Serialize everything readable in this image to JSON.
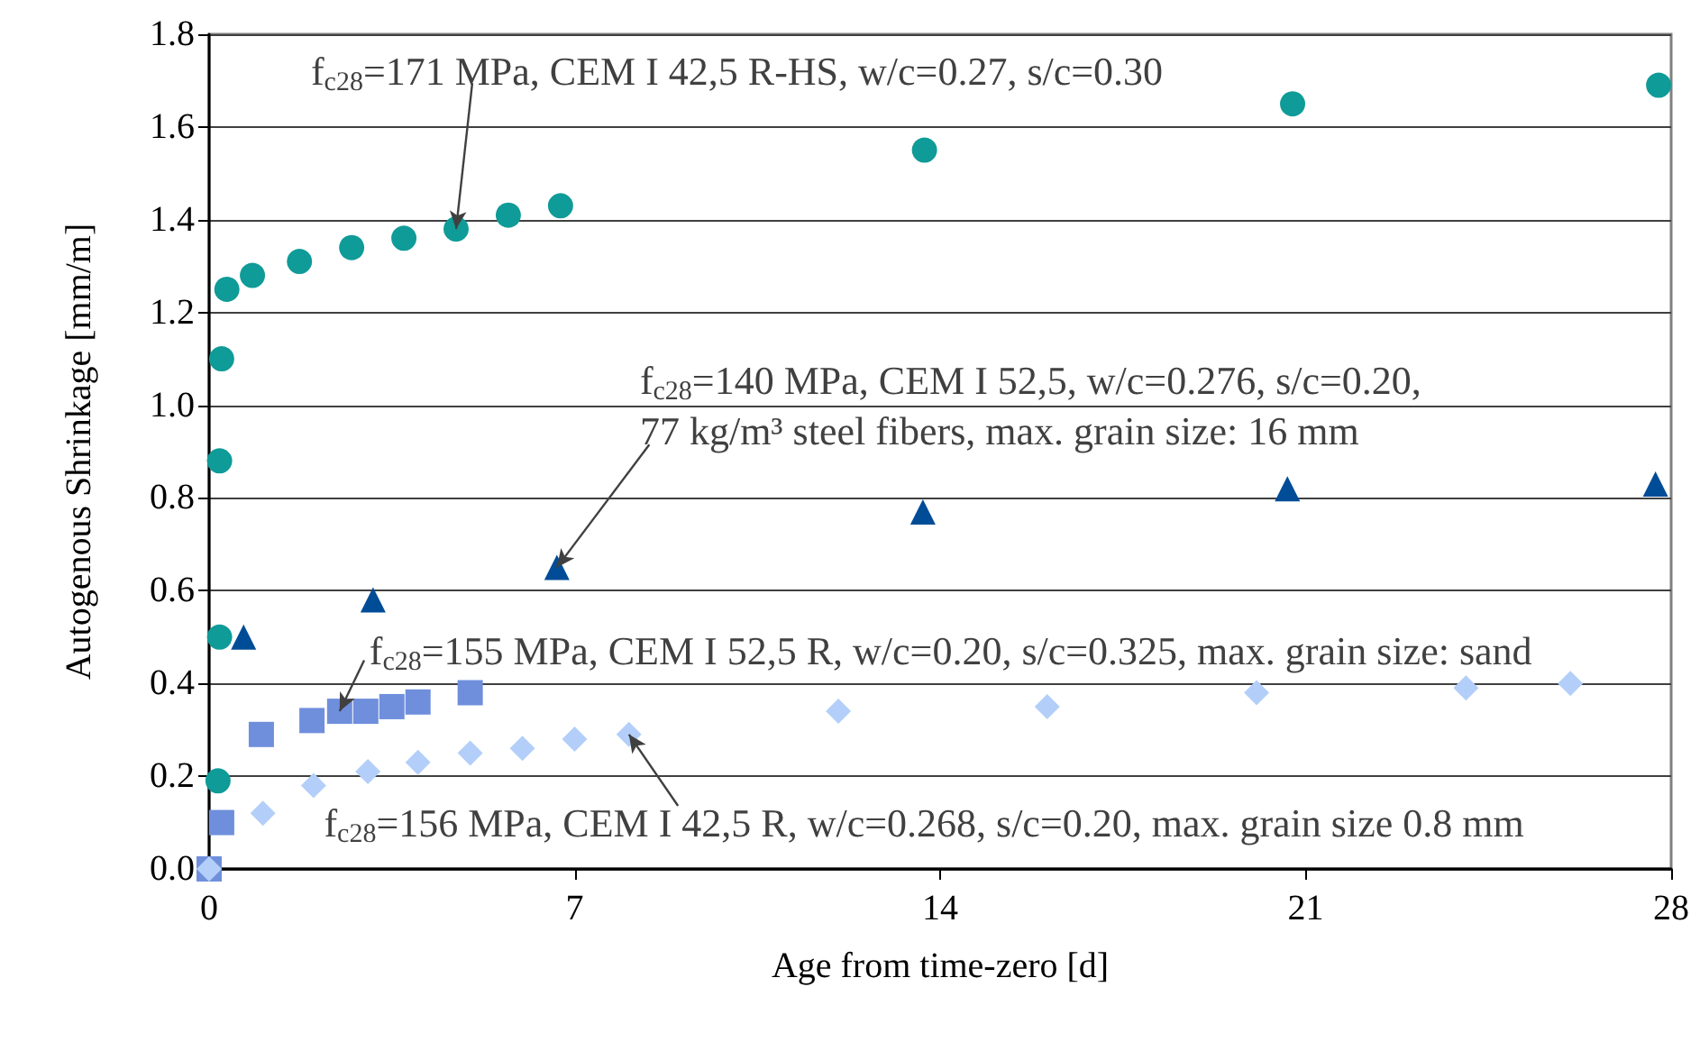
{
  "chart_data": {
    "type": "scatter",
    "xlabel": "Age from time-zero [d]",
    "ylabel": "Autogenous Shrinkage [mm/m]",
    "xlim": [
      0,
      28
    ],
    "xticks": [
      0,
      7,
      14,
      21,
      28
    ],
    "ylim": [
      0,
      1.8
    ],
    "yticks": [
      {
        "value": 0,
        "label": "0.0"
      },
      {
        "value": 0.2,
        "label": "0.2"
      },
      {
        "value": 0.4,
        "label": "0.4"
      },
      {
        "value": 0.6,
        "label": "0.6"
      },
      {
        "value": 0.8,
        "label": "0.8"
      },
      {
        "value": 1.0,
        "label": "1.0"
      },
      {
        "value": 1.2,
        "label": "1.2"
      },
      {
        "value": 1.4,
        "label": "1.4"
      },
      {
        "value": 1.6,
        "label": "1.6"
      },
      {
        "value": 1.8,
        "label": "1.8"
      }
    ],
    "grid": "y",
    "series": [
      {
        "color": "#0f9b98",
        "marker": "circle",
        "x": [
          0.17,
          0.2,
          0.2,
          0.24,
          0.34,
          0.83,
          1.73,
          2.73,
          3.73,
          4.73,
          5.73,
          6.73,
          13.7,
          20.75,
          27.76
        ],
        "values": [
          0.19,
          0.5,
          0.88,
          1.1,
          1.25,
          1.28,
          1.31,
          1.34,
          1.36,
          1.38,
          1.41,
          1.43,
          1.55,
          1.65,
          1.69
        ]
      },
      {
        "color": "#004c97",
        "marker": "triangle",
        "x": [
          0.66,
          3.14,
          6.66,
          13.67,
          20.65,
          27.7
        ],
        "values": [
          0.5,
          0.58,
          0.65,
          0.77,
          0.82,
          0.83
        ]
      },
      {
        "color": "#6f8fdc",
        "marker": "square",
        "x": [
          0,
          0.24,
          1.0,
          1.97,
          2.5,
          3.0,
          3.5,
          4.0,
          5.0
        ],
        "values": [
          0,
          0.1,
          0.29,
          0.32,
          0.34,
          0.34,
          0.35,
          0.36,
          0.38
        ]
      },
      {
        "color": "#b3cff9",
        "marker": "diamond",
        "x": [
          0,
          1.03,
          2.0,
          3.04,
          4.0,
          5.0,
          6.0,
          7.0,
          8.04,
          12.05,
          16.05,
          20.06,
          24.07,
          26.07
        ],
        "values": [
          0,
          0.12,
          0.18,
          0.21,
          0.23,
          0.25,
          0.26,
          0.28,
          0.29,
          0.34,
          0.35,
          0.38,
          0.39,
          0.4
        ]
      }
    ],
    "annotations": [
      {
        "text": "f$_{c28}$=171 MPa, CEM I 42,5 R-HS, w/c=0.27, s/c=0.30",
        "x": 4.73,
        "y": 1.38
      },
      {
        "text": "f$_{c28}$=140 MPa, CEM I 52,5, w/c=0.276, s/c=0.20,\n77 kg/m³ steel fibers, max. grain size: 16 mm",
        "x": 6.66,
        "y": 0.65
      },
      {
        "text": "f$_{c28}$=155 MPa, CEM I 52,5 R, w/c=0.20, s/c=0.325, max. grain size: sand",
        "x": 2.5,
        "y": 0.34
      },
      {
        "text": "f$_{c28}$=156 MPa, CEM I 42,5 R, w/c=0.268, s/c=0.20, max. grain size 0.8 mm",
        "x": 8.04,
        "y": 0.29
      }
    ]
  }
}
